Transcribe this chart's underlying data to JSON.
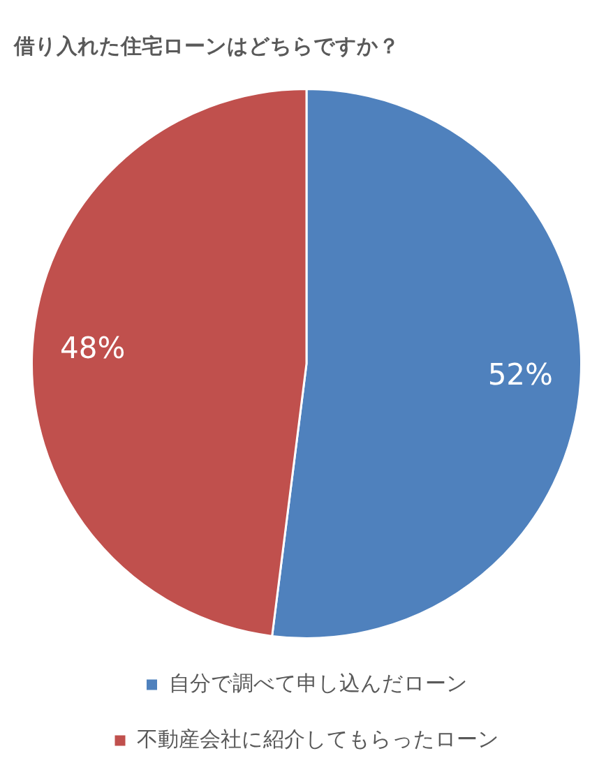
{
  "chart_data": {
    "type": "pie",
    "title": "借り入れた住宅ローンはどちらですか？",
    "categories": [
      "自分で調べて申し込んだローン",
      "不動産会社に紹介してもらったローン"
    ],
    "values": [
      52,
      48
    ],
    "colors": [
      "#4f81bd",
      "#c0504d"
    ],
    "value_labels": [
      "52%",
      "48%"
    ],
    "legend": "bottom"
  }
}
